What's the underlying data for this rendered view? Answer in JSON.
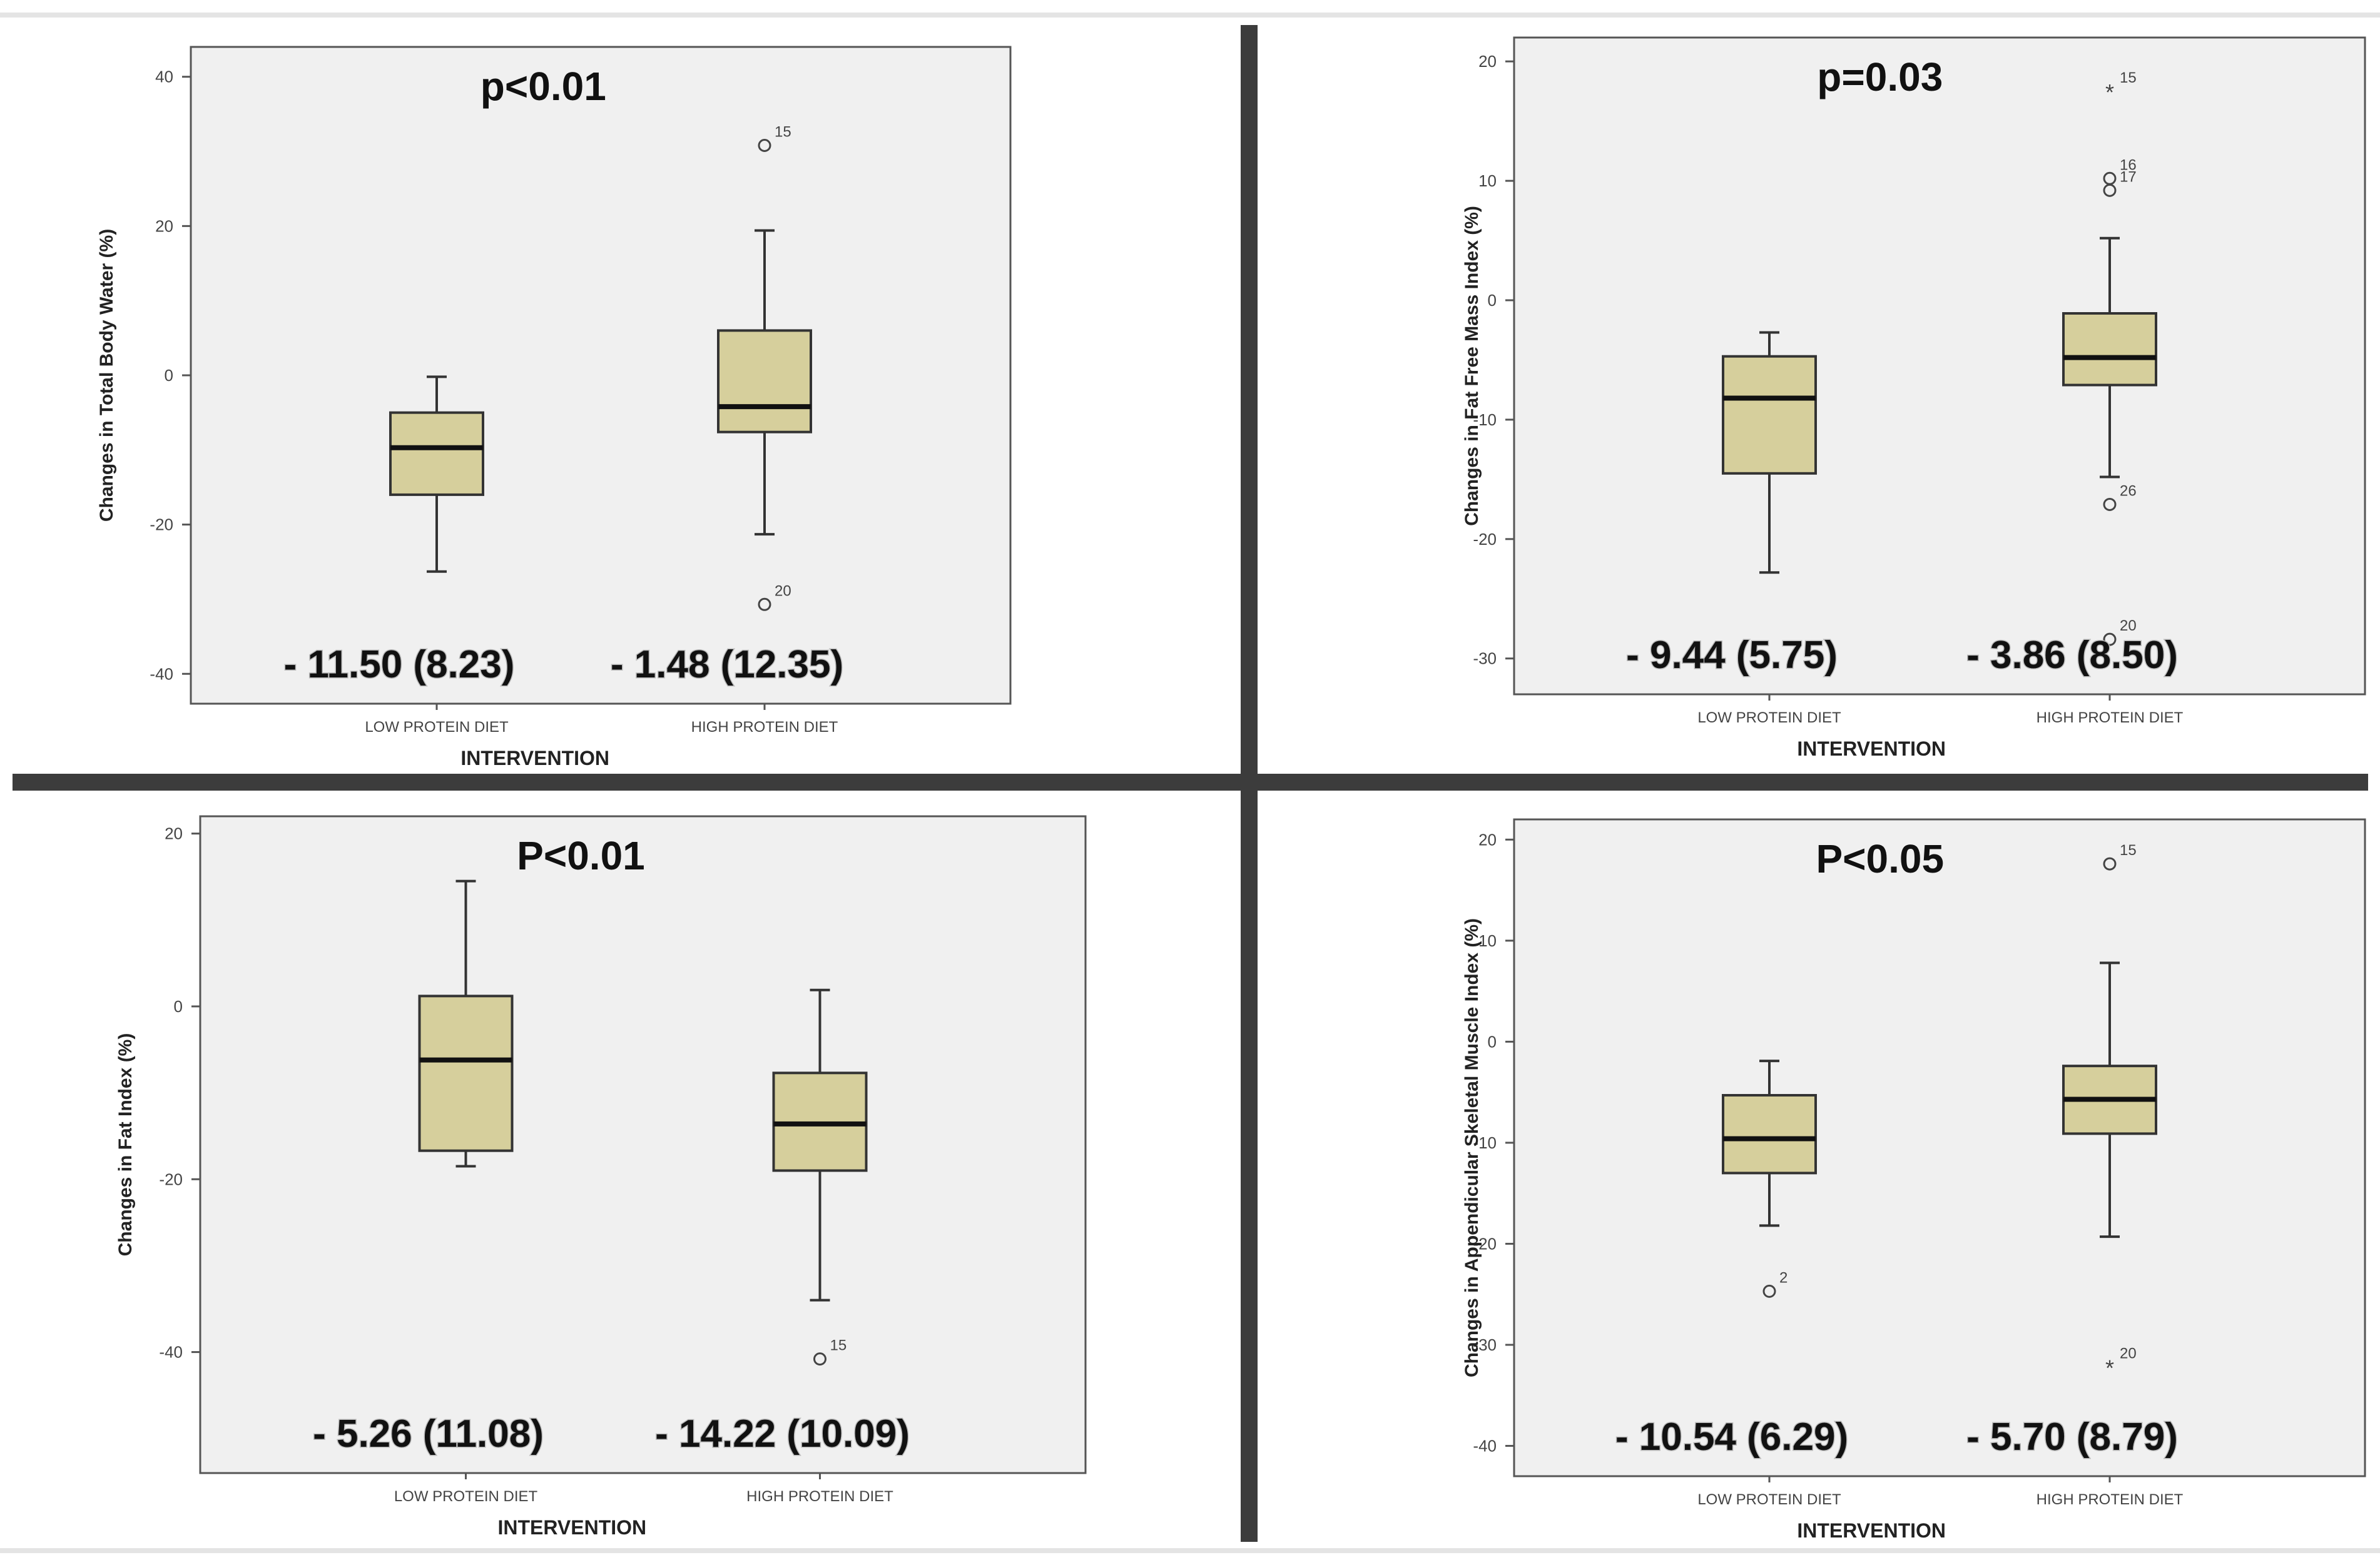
{
  "colors": {
    "plot_bg": "#f0f0f0",
    "box_fill": "#d6cf9c",
    "box_stroke": "#333333",
    "separator": "#3c3c3c"
  },
  "chart_data": [
    {
      "id": "tbw",
      "type": "boxplot",
      "title": "p<0.01",
      "xlabel": "INTERVENTION",
      "ylabel": "Changes in Total Body Water (%)",
      "ylim": [
        -44,
        44
      ],
      "yticks": [
        40,
        20,
        0,
        -20,
        -40
      ],
      "categories": [
        "LOW PROTEIN DIET",
        "HIGH PROTEIN DIET"
      ],
      "boxes": [
        {
          "category": "LOW PROTEIN DIET",
          "whisker_low": -26.3,
          "q1": -16,
          "median": -9.7,
          "q3": -5,
          "whisker_high": -0.2,
          "outliers": [],
          "summary": "- 11.50 (8.23)"
        },
        {
          "category": "HIGH PROTEIN DIET",
          "whisker_low": -21.3,
          "q1": -7.6,
          "median": -4.2,
          "q3": 6,
          "whisker_high": 19.4,
          "outliers": [
            {
              "value": 30.8,
              "label": "15",
              "marker": "circle"
            },
            {
              "value": -30.7,
              "label": "20",
              "marker": "circle"
            }
          ],
          "summary": "- 1.48 (12.35)"
        }
      ]
    },
    {
      "id": "ffmi",
      "type": "boxplot",
      "title": "p=0.03",
      "xlabel": "INTERVENTION",
      "ylabel": "Changes in Fat Free Mass Index (%)",
      "ylim": [
        -33,
        22
      ],
      "yticks": [
        20,
        10,
        0,
        -10,
        -20,
        -30
      ],
      "categories": [
        "LOW PROTEIN DIET",
        "HIGH PROTEIN DIET"
      ],
      "boxes": [
        {
          "category": "LOW PROTEIN DIET",
          "whisker_low": -22.8,
          "q1": -14.5,
          "median": -8.2,
          "q3": -4.7,
          "whisker_high": -2.7,
          "outliers": [],
          "summary": "- 9.44 (5.75)"
        },
        {
          "category": "HIGH PROTEIN DIET",
          "whisker_low": -14.8,
          "q1": -7.1,
          "median": -4.8,
          "q3": -1.1,
          "whisker_high": 5.2,
          "outliers": [
            {
              "value": 17.5,
              "label": "15",
              "marker": "star"
            },
            {
              "value": 10.2,
              "label": "16",
              "marker": "circle"
            },
            {
              "value": 9.2,
              "label": "17",
              "marker": "circle"
            },
            {
              "value": -17.1,
              "label": "26",
              "marker": "circle"
            },
            {
              "value": -28.4,
              "label": "20",
              "marker": "circle"
            }
          ],
          "summary": "- 3.86 (8.50)"
        }
      ]
    },
    {
      "id": "fi",
      "type": "boxplot",
      "title": "P<0.01",
      "xlabel": "INTERVENTION",
      "ylabel": "Changes in Fat Index (%)",
      "ylim": [
        -54,
        22
      ],
      "yticks": [
        20,
        0,
        -20,
        -40
      ],
      "categories": [
        "LOW PROTEIN DIET",
        "HIGH PROTEIN DIET"
      ],
      "boxes": [
        {
          "category": "LOW PROTEIN DIET",
          "whisker_low": -18.5,
          "q1": -16.7,
          "median": -6.2,
          "q3": 1.2,
          "whisker_high": 14.5,
          "outliers": [],
          "summary": "- 5.26 (11.08)"
        },
        {
          "category": "HIGH PROTEIN DIET",
          "whisker_low": -34,
          "q1": -19,
          "median": -13.6,
          "q3": -7.7,
          "whisker_high": 1.9,
          "outliers": [
            {
              "value": -40.8,
              "label": "15",
              "marker": "circle"
            }
          ],
          "summary": "- 14.22 (10.09)"
        }
      ]
    },
    {
      "id": "asmi",
      "type": "boxplot",
      "title": "P<0.05",
      "xlabel": "INTERVENTION",
      "ylabel": "Changes in Appendicular Skeletal Muscle Index (%)",
      "ylim": [
        -43,
        22
      ],
      "yticks": [
        20,
        10,
        0,
        -10,
        -20,
        -30,
        -40
      ],
      "categories": [
        "LOW PROTEIN DIET",
        "HIGH PROTEIN DIET"
      ],
      "boxes": [
        {
          "category": "LOW PROTEIN DIET",
          "whisker_low": -18.2,
          "q1": -13,
          "median": -9.6,
          "q3": -5.3,
          "whisker_high": -1.9,
          "outliers": [
            {
              "value": -24.7,
              "label": "2",
              "marker": "circle"
            }
          ],
          "summary": "- 10.54 (6.29)"
        },
        {
          "category": "HIGH PROTEIN DIET",
          "whisker_low": -19.3,
          "q1": -9.1,
          "median": -5.7,
          "q3": -2.4,
          "whisker_high": 7.8,
          "outliers": [
            {
              "value": 17.6,
              "label": "15",
              "marker": "circle"
            },
            {
              "value": -32.2,
              "label": "20",
              "marker": "star"
            }
          ],
          "summary": "- 5.70 (8.79)"
        }
      ]
    }
  ]
}
